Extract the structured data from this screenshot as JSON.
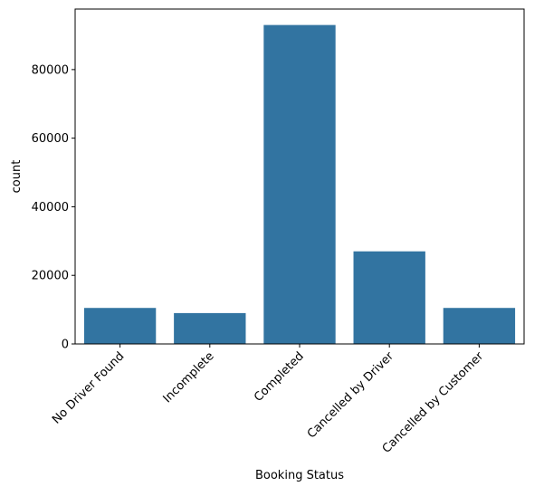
{
  "chart_data": {
    "type": "bar",
    "xlabel": "Booking Status",
    "ylabel": "count",
    "categories": [
      "No Driver Found",
      "Incomplete",
      "Completed",
      "Cancelled by Driver",
      "Cancelled by Customer"
    ],
    "values": [
      10500,
      9000,
      93000,
      27000,
      10500
    ],
    "ylim": [
      0,
      97650
    ],
    "yticks": [
      0,
      20000,
      40000,
      60000,
      80000
    ],
    "bar_color": "#3274a1",
    "grid": false,
    "legend": false
  }
}
